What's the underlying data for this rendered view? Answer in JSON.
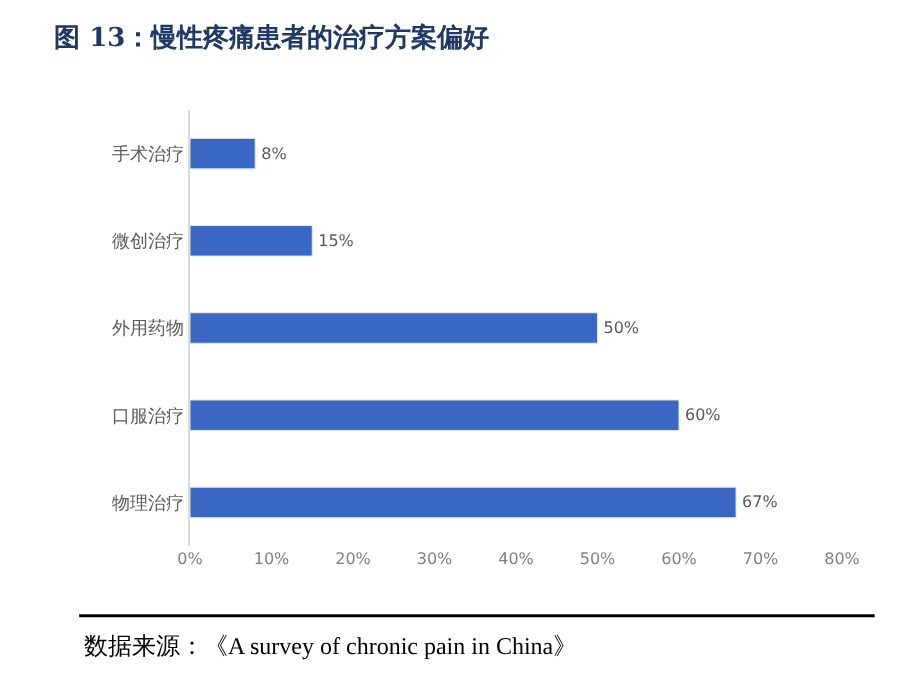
{
  "chart_data": {
    "type": "bar",
    "orientation": "horizontal",
    "title": "图 13：慢性疼痛患者的治疗方案偏好",
    "categories": [
      "手术治疗",
      "微创治疗",
      "外用药物",
      "口服治疗",
      "物理治疗"
    ],
    "values": [
      8,
      15,
      50,
      60,
      67
    ],
    "value_labels": [
      "8%",
      "15%",
      "50%",
      "60%",
      "67%"
    ],
    "color": "#3a67c4",
    "xlim": [
      0,
      80
    ],
    "xticks": [
      {
        "value": 0,
        "label": "0%"
      },
      {
        "value": 10,
        "label": "10%"
      },
      {
        "value": 20,
        "label": "20%"
      },
      {
        "value": 30,
        "label": "30%"
      },
      {
        "value": 40,
        "label": "40%"
      },
      {
        "value": 50,
        "label": "50%"
      },
      {
        "value": 60,
        "label": "60%"
      },
      {
        "value": 70,
        "label": "70%"
      },
      {
        "value": 80,
        "label": "80%"
      }
    ],
    "legend": false,
    "annotations": [
      "数据来源：《A survey of chronic pain in China》"
    ]
  }
}
